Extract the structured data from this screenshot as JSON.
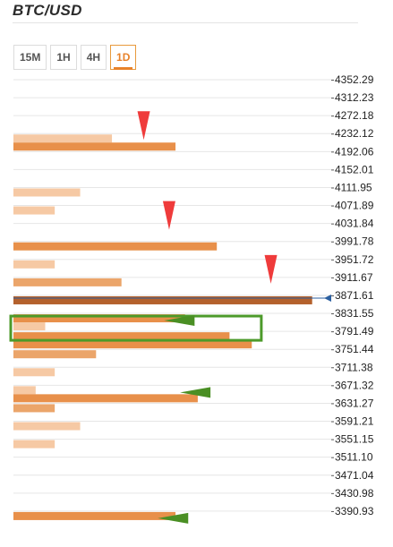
{
  "header": {
    "title": "BTC/USD"
  },
  "tabs": [
    {
      "label": "15M",
      "active": false
    },
    {
      "label": "1H",
      "active": false
    },
    {
      "label": "4H",
      "active": false
    },
    {
      "label": "1D",
      "active": true
    }
  ],
  "colors": {
    "bar_orange": "#e8904a",
    "bar_light": "#f6c9a4",
    "bar_mid": "#eba56a",
    "bar_brown": "#b4612c",
    "grid": "#e6e6e6",
    "marker_red": "#ef3b3b",
    "marker_green": "#4a8f24",
    "highlight_box": "#4c9a2a",
    "current_price_line": "#2b5fa0"
  },
  "chart_data": {
    "type": "bar",
    "orientation": "horizontal",
    "y_levels": [
      "4352.29",
      "4312.23",
      "4272.18",
      "4232.12",
      "4192.06",
      "4152.01",
      "4111.95",
      "4071.89",
      "4031.84",
      "3991.78",
      "3951.72",
      "3911.67",
      "3871.61",
      "3831.55",
      "3791.49",
      "3751.44",
      "3711.38",
      "3671.32",
      "3631.27",
      "3591.21",
      "3551.15",
      "3511.10",
      "3471.04",
      "3430.98",
      "3390.93"
    ],
    "xlim": [
      0,
      100
    ],
    "grid": true,
    "bars": [
      {
        "level": "4232.12",
        "value": 31,
        "style": "light"
      },
      {
        "level": "4232.12",
        "value": 51,
        "style": "orange"
      },
      {
        "level": "4111.95",
        "value": 21,
        "style": "light"
      },
      {
        "level": "4071.89",
        "value": 13,
        "style": "light"
      },
      {
        "level": "3991.78",
        "value": 64,
        "style": "orange"
      },
      {
        "level": "3951.72",
        "value": 13,
        "style": "light"
      },
      {
        "level": "3911.67",
        "value": 34,
        "style": "mid"
      },
      {
        "level": "3871.61",
        "value": 94,
        "style": "brown"
      },
      {
        "level": "3831.55",
        "value": 54,
        "style": "orange"
      },
      {
        "level": "3831.55",
        "value": 10,
        "style": "light"
      },
      {
        "level": "3791.49",
        "value": 68,
        "style": "orange"
      },
      {
        "level": "3791.49",
        "value": 75,
        "style": "orange"
      },
      {
        "level": "3751.44",
        "value": 26,
        "style": "mid"
      },
      {
        "level": "3711.38",
        "value": 13,
        "style": "light"
      },
      {
        "level": "3671.32",
        "value": 7,
        "style": "light"
      },
      {
        "level": "3671.32",
        "value": 58,
        "style": "orange"
      },
      {
        "level": "3631.27",
        "value": 13,
        "style": "mid"
      },
      {
        "level": "3591.21",
        "value": 21,
        "style": "light"
      },
      {
        "level": "3551.15",
        "value": 13,
        "style": "light"
      },
      {
        "level": "3390.93",
        "value": 51,
        "style": "orange"
      }
    ],
    "markers": [
      {
        "type": "down-arrow",
        "color": "red",
        "level": "4232.12",
        "x": 41
      },
      {
        "type": "down-arrow",
        "color": "red",
        "level": "4031.84",
        "x": 49
      },
      {
        "type": "down-arrow",
        "color": "red",
        "level": "3911.67",
        "x": 81
      },
      {
        "type": "left-arrow",
        "color": "green",
        "level": "3831.55",
        "x": 57
      },
      {
        "type": "left-arrow",
        "color": "green",
        "level": "3671.32",
        "x": 62
      },
      {
        "type": "left-arrow",
        "color": "green",
        "level": "3390.93",
        "x": 55
      }
    ],
    "current_price": "3871.61",
    "highlight_range": [
      "3831.55",
      "3791.49"
    ]
  }
}
